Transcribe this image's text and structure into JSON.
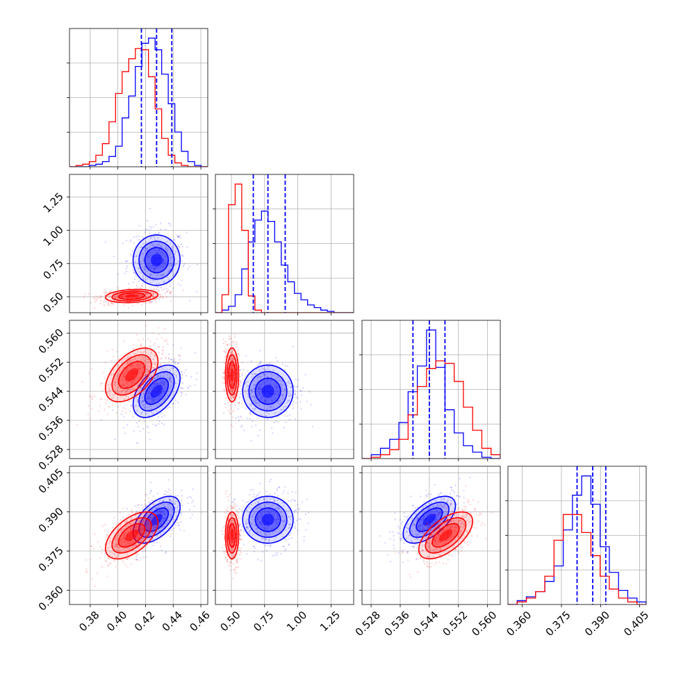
{
  "chart_data": {
    "type": "scatter",
    "kind": "corner-plot",
    "colors": {
      "blue": "#0000ff",
      "red": "#ff0000",
      "grid": "#b0b0b0"
    },
    "params": [
      {
        "range": [
          0.365,
          0.465
        ],
        "ticks": [
          "0.38",
          "0.40",
          "0.42",
          "0.44",
          "0.46"
        ],
        "tick_values": [
          0.38,
          0.4,
          0.42,
          0.44,
          0.46
        ]
      },
      {
        "range": [
          0.38,
          1.42
        ],
        "ticks": [
          "0.50",
          "0.75",
          "1.00",
          "1.25"
        ],
        "tick_values": [
          0.5,
          0.75,
          1.0,
          1.25
        ]
      },
      {
        "range": [
          0.5255,
          0.5635
        ],
        "ticks": [
          "0.528",
          "0.536",
          "0.544",
          "0.552",
          "0.560"
        ],
        "tick_values": [
          0.528,
          0.536,
          0.544,
          0.552,
          0.56
        ]
      },
      {
        "range": [
          0.3545,
          0.4075
        ],
        "ticks": [
          "0.360",
          "0.375",
          "0.390",
          "0.405"
        ],
        "tick_values": [
          0.36,
          0.375,
          0.39,
          0.405
        ]
      }
    ],
    "quantile_lines": [
      [
        0.417,
        0.428,
        0.439
      ],
      [
        0.665,
        0.775,
        0.905
      ],
      [
        0.5395,
        0.544,
        0.5483
      ],
      [
        0.381,
        0.387,
        0.392
      ]
    ],
    "series": [
      {
        "color": "blue",
        "mean": [
          0.428,
          0.775,
          0.544,
          0.387
        ],
        "sd": [
          0.0085,
          0.095,
          0.0036,
          0.0045
        ],
        "corr": [
          [
            1,
            0.0,
            0.5,
            0.55
          ],
          [
            0.0,
            1,
            0.0,
            0.0
          ],
          [
            0.5,
            0.0,
            1,
            0.6
          ],
          [
            0.55,
            0.0,
            0.6,
            1
          ]
        ],
        "hist": [
          [
            0,
            0,
            0,
            1,
            2,
            4,
            8,
            16,
            38,
            55,
            78,
            96,
            100,
            91,
            72,
            49,
            27,
            12,
            4,
            1,
            0
          ],
          [
            0,
            2,
            5,
            14,
            34,
            55,
            72,
            79,
            71,
            55,
            37,
            24,
            15,
            10,
            6,
            4,
            2,
            1,
            0,
            0,
            0
          ],
          [
            0,
            3,
            8,
            15,
            28,
            52,
            72,
            100,
            71,
            38,
            20,
            10,
            5,
            1,
            0
          ],
          [
            0,
            3,
            6,
            10,
            18,
            30,
            58,
            85,
            100,
            78,
            45,
            25,
            11,
            5,
            2
          ]
        ]
      },
      {
        "color": "red",
        "mean": [
          0.41,
          0.505,
          0.5485,
          0.381
        ],
        "sd": [
          0.0095,
          0.025,
          0.0037,
          0.0045
        ],
        "corr": [
          [
            1,
            0.2,
            0.5,
            0.55
          ],
          [
            0.2,
            1,
            0.0,
            0.0
          ],
          [
            0.5,
            0.0,
            1,
            0.6
          ],
          [
            0.55,
            0.0,
            0.6,
            1
          ]
        ],
        "hist": [
          [
            0,
            1,
            2,
            4,
            9,
            18,
            35,
            57,
            74,
            84,
            92,
            91,
            70,
            45,
            22,
            9,
            3,
            1,
            0,
            0,
            0
          ],
          [
            0,
            14,
            84,
            100,
            64,
            13,
            2,
            0,
            0,
            0,
            0,
            0,
            0,
            0,
            0,
            0,
            0,
            0,
            0,
            0,
            0
          ],
          [
            0,
            1,
            3,
            7,
            15,
            34,
            56,
            70,
            76,
            74,
            60,
            40,
            22,
            8,
            3
          ],
          [
            0,
            2,
            5,
            10,
            22,
            50,
            70,
            70,
            56,
            38,
            22,
            12,
            5,
            2,
            0
          ]
        ]
      }
    ]
  }
}
